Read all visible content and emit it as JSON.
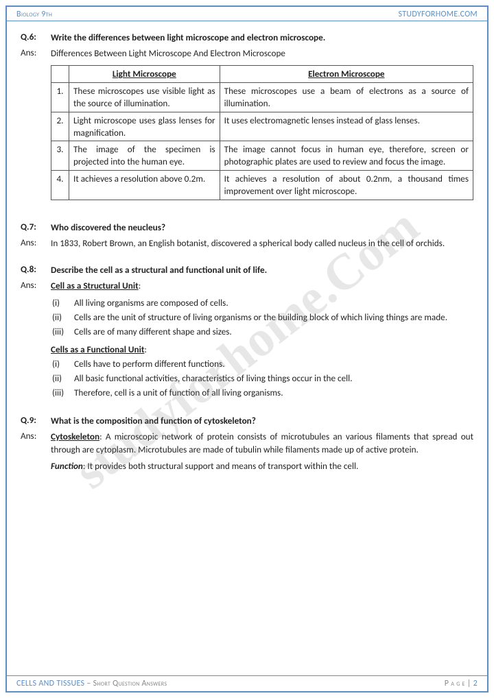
{
  "header": {
    "left": "Biology 9th",
    "right": "STUDYFORHOME.COM"
  },
  "watermark": "studyforhome.Com",
  "q6": {
    "num": "Q.6:",
    "q": "Write the differences between light microscope and electron microscope.",
    "ans_label": "Ans:",
    "ans_title": "Differences Between Light Microscope And Electron Microscope",
    "th1": "Light Microscope",
    "th2": "Electron Microscope",
    "rows": [
      {
        "n": "1.",
        "a": "These microscopes use visible light as the source of illumination.",
        "b": "These microscopes use a beam of electrons as a source of illumination."
      },
      {
        "n": "2.",
        "a": "Light microscope uses glass lenses for magnification.",
        "b": "It uses electromagnetic lenses instead of glass lenses."
      },
      {
        "n": "3.",
        "a": "The image of the specimen is projected into the human eye.",
        "b": "The image cannot focus in human eye, therefore, screen or photographic plates are used to review and focus the image."
      },
      {
        "n": "4.",
        "a": "It achieves a resolution above 0.2m.",
        "b": "It achieves a resolution of about 0.2nm, a thousand times improvement over light microscope."
      }
    ]
  },
  "q7": {
    "num": "Q.7:",
    "q": "Who discovered the neucleus?",
    "ans_label": "Ans:",
    "a": "In 1833, Robert Brown, an English botanist, discovered a spherical body called nucleus in the cell of orchids."
  },
  "q8": {
    "num": "Q.8:",
    "q": "Describe the cell as a structural and functional unit of life.",
    "ans_label": "Ans:",
    "h1": "Cell as a Structural Unit",
    "s1": [
      {
        "n": "(i)",
        "t": "All living organisms are composed of cells."
      },
      {
        "n": "(ii)",
        "t": "Cells are the unit of structure of living organisms or the building block of which living things are made."
      },
      {
        "n": "(iii)",
        "t": "Cells are of many different shape and sizes."
      }
    ],
    "h2": "Cells as a Functional Unit",
    "s2": [
      {
        "n": "(i)",
        "t": "Cells have to perform different functions."
      },
      {
        "n": "(ii)",
        "t": "All basic functional activities, characteristics of living things occur in the cell."
      },
      {
        "n": "(iii)",
        "t": "Therefore, cell is a unit of function of all living organisms."
      }
    ]
  },
  "q9": {
    "num": "Q.9:",
    "q": "What is the composition and function of cytoskeleton?",
    "ans_label": "Ans:",
    "t1_label": "Cytoskeleton",
    "t1": ": A microscopic network of protein consists of microtubules an various filaments that spread out through are cytoplasm. Microtubules are made of tubulin while filaments made up of active protein.",
    "t2_label": "Function",
    "t2": ": It provides both structural support and means of transport within the cell."
  },
  "footer": {
    "left": "CELLS AND TISSUES",
    "sub": " – Short Question Answers",
    "right_label": "P a g e | ",
    "right_num": "2"
  }
}
